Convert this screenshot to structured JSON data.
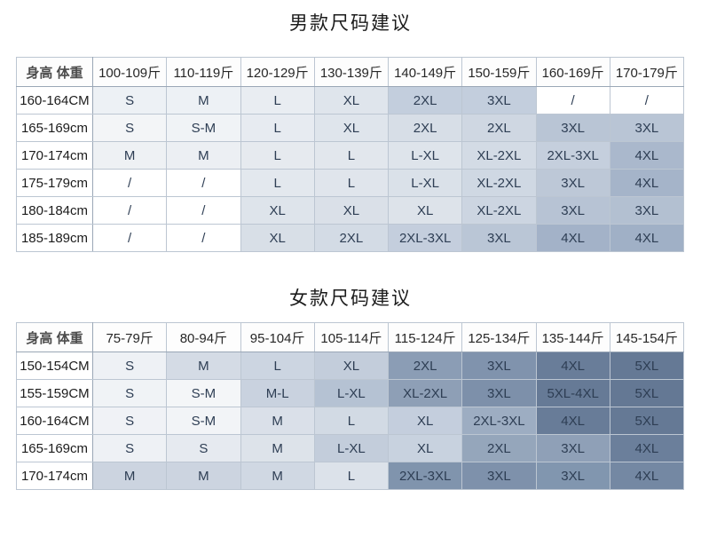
{
  "colors": {
    "page_background": "#ffffff",
    "title_text": "#1b1b1b",
    "header_text": "#272727",
    "cell_text": "#2e3e54",
    "border_outer": "#8f9cab",
    "border_inner": "#bcc6d2",
    "shade_lightest": "#f4f6f8",
    "shade_darkest": "#647894"
  },
  "tables": [
    {
      "title": "男款尺码建议",
      "corner_header": "身高 体重",
      "weight_headers": [
        "100-109斤",
        "110-119斤",
        "120-129斤",
        "130-139斤",
        "140-149斤",
        "150-159斤",
        "160-169斤",
        "170-179斤"
      ],
      "rows": [
        {
          "height": "160-164CM",
          "cells": [
            "S",
            "M",
            "L",
            "XL",
            "2XL",
            "3XL",
            "/",
            "/"
          ],
          "colors": [
            "#edf1f5",
            "#edf1f5",
            "#e9edf2",
            "#dfe5ec",
            "#c3cedd",
            "#c3cedd",
            "#ffffff",
            "#ffffff"
          ]
        },
        {
          "height": "165-169cm",
          "cells": [
            "S",
            "S-M",
            "L",
            "XL",
            "2XL",
            "2XL",
            "3XL",
            "3XL"
          ],
          "colors": [
            "#f3f5f7",
            "#f0f3f6",
            "#e7ebf1",
            "#dfe5ec",
            "#d7dee7",
            "#cfd7e2",
            "#b9c5d5",
            "#b9c5d5"
          ]
        },
        {
          "height": "170-174cm",
          "cells": [
            "M",
            "M",
            "L",
            "L",
            "L-XL",
            "XL-2XL",
            "2XL-3XL",
            "4XL"
          ],
          "colors": [
            "#eef1f4",
            "#eceff3",
            "#e6eaef",
            "#e2e7ed",
            "#dee4eb",
            "#d3dbe5",
            "#c5cfdd",
            "#aab8cc"
          ]
        },
        {
          "height": "175-179cm",
          "cells": [
            "/",
            "/",
            "L",
            "L",
            "L-XL",
            "XL-2XL",
            "3XL",
            "4XL"
          ],
          "colors": [
            "#ffffff",
            "#ffffff",
            "#e3e8ee",
            "#e0e5ec",
            "#dae1e9",
            "#cfd8e3",
            "#bdc8d7",
            "#a5b4c9"
          ]
        },
        {
          "height": "180-184cm",
          "cells": [
            "/",
            "/",
            "XL",
            "XL",
            "XL",
            "XL-2XL",
            "3XL",
            "3XL"
          ],
          "colors": [
            "#ffffff",
            "#ffffff",
            "#dee4eb",
            "#dae0e8",
            "#dde3ea",
            "#ccd5e1",
            "#b7c3d4",
            "#b3c0d1"
          ]
        },
        {
          "height": "185-189cm",
          "cells": [
            "/",
            "/",
            "XL",
            "2XL",
            "2XL-3XL",
            "3XL",
            "4XL",
            "4XL"
          ],
          "colors": [
            "#ffffff",
            "#ffffff",
            "#d8dfe7",
            "#d3dbe5",
            "#c4cedd",
            "#bac6d6",
            "#a3b2c8",
            "#a0b0c6"
          ]
        }
      ]
    },
    {
      "title": "女款尺码建议",
      "corner_header": "身高 体重",
      "weight_headers": [
        "75-79斤",
        "80-94斤",
        "95-104斤",
        "105-114斤",
        "115-124斤",
        "125-134斤",
        "135-144斤",
        "145-154斤"
      ],
      "rows": [
        {
          "height": "150-154CM",
          "cells": [
            "S",
            "M",
            "L",
            "XL",
            "2XL",
            "3XL",
            "4XL",
            "5XL"
          ],
          "colors": [
            "#eef1f5",
            "#d4dbe5",
            "#ccd5e1",
            "#c3cddb",
            "#8b9db5",
            "#8093ad",
            "#697d99",
            "#657995"
          ]
        },
        {
          "height": "155-159CM",
          "cells": [
            "S",
            "S-M",
            "M-L",
            "L-XL",
            "XL-2XL",
            "3XL",
            "5XL-4XL",
            "5XL"
          ],
          "colors": [
            "#f0f3f6",
            "#f4f6f8",
            "#c9d2df",
            "#b5c2d3",
            "#8e9fb6",
            "#7d90aa",
            "#667a96",
            "#647894"
          ]
        },
        {
          "height": "160-164CM",
          "cells": [
            "S",
            "S-M",
            "M",
            "L",
            "XL",
            "2XL-3XL",
            "4XL",
            "5XL"
          ],
          "colors": [
            "#f0f2f6",
            "#f2f4f7",
            "#dae0e9",
            "#d2dae4",
            "#c4cedd",
            "#9dadc2",
            "#687c98",
            "#657995"
          ]
        },
        {
          "height": "165-169cm",
          "cells": [
            "S",
            "S",
            "M",
            "L-XL",
            "XL",
            "2XL",
            "3XL",
            "4XL"
          ],
          "colors": [
            "#eef1f5",
            "#e6eaf0",
            "#dde3ea",
            "#c3cddb",
            "#c8d2df",
            "#95a6bb",
            "#8fa0b7",
            "#6b7f9b"
          ]
        },
        {
          "height": "170-174cm",
          "cells": [
            "M",
            "M",
            "M",
            "L",
            "2XL-3XL",
            "3XL",
            "3XL",
            "4XL"
          ],
          "colors": [
            "#ccd4e0",
            "#ccd4e0",
            "#d0d8e3",
            "#dce2ea",
            "#8094ad",
            "#7e91ab",
            "#8196af",
            "#7488a3"
          ]
        }
      ]
    }
  ]
}
